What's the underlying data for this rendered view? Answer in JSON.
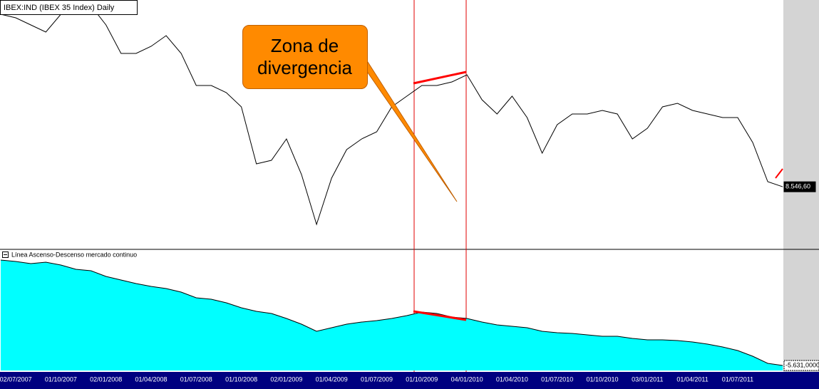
{
  "chart_data": [
    {
      "type": "line",
      "title": "IBEX:IND (IBEX 35 Index) Daily",
      "color": "#000000",
      "annotation": "Zona de divergencia",
      "ylim": [
        6070,
        16385
      ],
      "values": [
        15787,
        15638,
        15339,
        15040,
        15787,
        16146,
        16146,
        15339,
        14143,
        14143,
        14442,
        14890,
        14143,
        12797,
        12797,
        12498,
        11900,
        9508,
        9658,
        10554,
        9060,
        6967,
        8910,
        10106,
        10554,
        10853,
        11900,
        12349,
        12797,
        12797,
        12947,
        13246,
        12199,
        11601,
        12349,
        11452,
        9956,
        11153,
        11601,
        11601,
        11750,
        11601,
        10554,
        11003,
        11900,
        12050,
        11750,
        11601,
        11452,
        11452,
        10405,
        8761,
        8546.6
      ],
      "value_labels": [
        null,
        null,
        null,
        null,
        null,
        null,
        null,
        null,
        null,
        null,
        null,
        null,
        null,
        null,
        null,
        null,
        null,
        null,
        null,
        null,
        null,
        null,
        null,
        null,
        null,
        null,
        null,
        null,
        null,
        null,
        null,
        null,
        null,
        null,
        null,
        null,
        null,
        null,
        null,
        null,
        null,
        null,
        null,
        null,
        null,
        null,
        null,
        null,
        null,
        null,
        null,
        null,
        "8.546,60"
      ]
    },
    {
      "type": "area",
      "title": "Línea Ascenso-Descenso mercado continuo",
      "color": "#00ffff",
      "ylim": [
        -5911,
        889
      ],
      "categories": [
        null,
        "02/07/2007",
        null,
        null,
        "01/10/2007",
        null,
        null,
        "02/01/2008",
        null,
        null,
        "01/04/2008",
        null,
        null,
        "01/07/2008",
        null,
        null,
        "01/10/2008",
        null,
        null,
        "02/01/2009",
        null,
        null,
        "01/04/2009",
        null,
        null,
        "01/07/2009",
        null,
        null,
        "01/10/2009",
        null,
        null,
        "04/01/2010",
        null,
        null,
        "01/04/2010",
        null,
        null,
        "01/07/2010",
        null,
        null,
        "01/10/2010",
        null,
        null,
        "03/01/2011",
        null,
        null,
        "01/04/2011",
        null,
        null,
        "01/07/2011",
        null,
        null,
        null
      ],
      "values": [
        289,
        209,
        89,
        169,
        9,
        -231,
        -311,
        -631,
        -831,
        -1031,
        -1191,
        -1311,
        -1511,
        -1831,
        -1911,
        -2111,
        -2391,
        -2591,
        -2711,
        -2991,
        -3311,
        -3711,
        -3511,
        -3311,
        -3191,
        -3111,
        -2991,
        -2831,
        -2631,
        -2711,
        -2911,
        -2991,
        -3191,
        -3351,
        -3431,
        -3511,
        -3711,
        -3791,
        -3831,
        -3911,
        -3991,
        -3991,
        -4111,
        -4191,
        -4191,
        -4231,
        -4311,
        -4431,
        -4591,
        -4791,
        -5111,
        -5511,
        -5631
      ],
      "value_labels": [
        null,
        null,
        null,
        null,
        null,
        null,
        null,
        null,
        null,
        null,
        null,
        null,
        null,
        null,
        null,
        null,
        null,
        null,
        null,
        null,
        null,
        null,
        null,
        null,
        null,
        null,
        null,
        null,
        null,
        null,
        null,
        null,
        null,
        null,
        null,
        null,
        null,
        null,
        null,
        null,
        null,
        null,
        null,
        null,
        null,
        null,
        null,
        null,
        null,
        null,
        null,
        null,
        "-5.631,0000"
      ]
    }
  ]
}
